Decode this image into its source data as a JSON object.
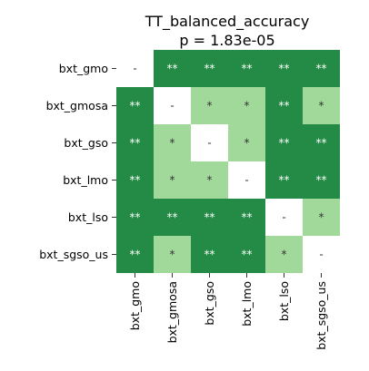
{
  "chart_data": {
    "type": "heatmap",
    "title": "TT_balanced_accuracy",
    "subtitle": "p = 1.83e-05",
    "row_labels": [
      "bxt_gmo",
      "bxt_gmosa",
      "bxt_gso",
      "bxt_lmo",
      "bxt_lso",
      "bxt_sgso_us"
    ],
    "col_labels": [
      "bxt_gmo",
      "bxt_gmosa",
      "bxt_gso",
      "bxt_lmo",
      "bxt_lso",
      "bxt_sgso_us"
    ],
    "cells": [
      [
        "-",
        "**",
        "**",
        "**",
        "**",
        "**"
      ],
      [
        "**",
        "-",
        "*",
        "*",
        "**",
        "*"
      ],
      [
        "**",
        "*",
        "-",
        "*",
        "**",
        "**"
      ],
      [
        "**",
        "*",
        "*",
        "-",
        "**",
        "**"
      ],
      [
        "**",
        "**",
        "**",
        "**",
        "-",
        "*"
      ],
      [
        "**",
        "*",
        "**",
        "**",
        "*",
        "-"
      ]
    ],
    "colors": {
      "**": "#238b45",
      "*": "#a1d99b",
      "-": "#ffffff"
    },
    "text_colors": {
      "**": "#ffffff",
      "*": "#333333",
      "-": "#333333"
    }
  }
}
